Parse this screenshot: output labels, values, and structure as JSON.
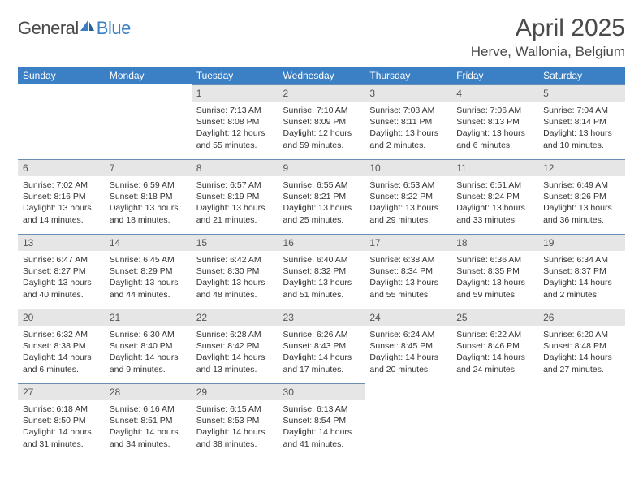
{
  "brand": {
    "part1": "General",
    "part2": "Blue"
  },
  "header": {
    "title": "April 2025",
    "location": "Herve, Wallonia, Belgium"
  },
  "colors": {
    "header_bg": "#3b7fc4",
    "header_fg": "#ffffff",
    "daynum_bg": "#e6e6e6",
    "daynum_border": "#6a8fb5",
    "text": "#333333",
    "muted": "#555555"
  },
  "weekdays": [
    "Sunday",
    "Monday",
    "Tuesday",
    "Wednesday",
    "Thursday",
    "Friday",
    "Saturday"
  ],
  "weeks": [
    [
      null,
      null,
      {
        "n": "1",
        "sr": "7:13 AM",
        "ss": "8:08 PM",
        "dl": "12 hours and 55 minutes."
      },
      {
        "n": "2",
        "sr": "7:10 AM",
        "ss": "8:09 PM",
        "dl": "12 hours and 59 minutes."
      },
      {
        "n": "3",
        "sr": "7:08 AM",
        "ss": "8:11 PM",
        "dl": "13 hours and 2 minutes."
      },
      {
        "n": "4",
        "sr": "7:06 AM",
        "ss": "8:13 PM",
        "dl": "13 hours and 6 minutes."
      },
      {
        "n": "5",
        "sr": "7:04 AM",
        "ss": "8:14 PM",
        "dl": "13 hours and 10 minutes."
      }
    ],
    [
      {
        "n": "6",
        "sr": "7:02 AM",
        "ss": "8:16 PM",
        "dl": "13 hours and 14 minutes."
      },
      {
        "n": "7",
        "sr": "6:59 AM",
        "ss": "8:18 PM",
        "dl": "13 hours and 18 minutes."
      },
      {
        "n": "8",
        "sr": "6:57 AM",
        "ss": "8:19 PM",
        "dl": "13 hours and 21 minutes."
      },
      {
        "n": "9",
        "sr": "6:55 AM",
        "ss": "8:21 PM",
        "dl": "13 hours and 25 minutes."
      },
      {
        "n": "10",
        "sr": "6:53 AM",
        "ss": "8:22 PM",
        "dl": "13 hours and 29 minutes."
      },
      {
        "n": "11",
        "sr": "6:51 AM",
        "ss": "8:24 PM",
        "dl": "13 hours and 33 minutes."
      },
      {
        "n": "12",
        "sr": "6:49 AM",
        "ss": "8:26 PM",
        "dl": "13 hours and 36 minutes."
      }
    ],
    [
      {
        "n": "13",
        "sr": "6:47 AM",
        "ss": "8:27 PM",
        "dl": "13 hours and 40 minutes."
      },
      {
        "n": "14",
        "sr": "6:45 AM",
        "ss": "8:29 PM",
        "dl": "13 hours and 44 minutes."
      },
      {
        "n": "15",
        "sr": "6:42 AM",
        "ss": "8:30 PM",
        "dl": "13 hours and 48 minutes."
      },
      {
        "n": "16",
        "sr": "6:40 AM",
        "ss": "8:32 PM",
        "dl": "13 hours and 51 minutes."
      },
      {
        "n": "17",
        "sr": "6:38 AM",
        "ss": "8:34 PM",
        "dl": "13 hours and 55 minutes."
      },
      {
        "n": "18",
        "sr": "6:36 AM",
        "ss": "8:35 PM",
        "dl": "13 hours and 59 minutes."
      },
      {
        "n": "19",
        "sr": "6:34 AM",
        "ss": "8:37 PM",
        "dl": "14 hours and 2 minutes."
      }
    ],
    [
      {
        "n": "20",
        "sr": "6:32 AM",
        "ss": "8:38 PM",
        "dl": "14 hours and 6 minutes."
      },
      {
        "n": "21",
        "sr": "6:30 AM",
        "ss": "8:40 PM",
        "dl": "14 hours and 9 minutes."
      },
      {
        "n": "22",
        "sr": "6:28 AM",
        "ss": "8:42 PM",
        "dl": "14 hours and 13 minutes."
      },
      {
        "n": "23",
        "sr": "6:26 AM",
        "ss": "8:43 PM",
        "dl": "14 hours and 17 minutes."
      },
      {
        "n": "24",
        "sr": "6:24 AM",
        "ss": "8:45 PM",
        "dl": "14 hours and 20 minutes."
      },
      {
        "n": "25",
        "sr": "6:22 AM",
        "ss": "8:46 PM",
        "dl": "14 hours and 24 minutes."
      },
      {
        "n": "26",
        "sr": "6:20 AM",
        "ss": "8:48 PM",
        "dl": "14 hours and 27 minutes."
      }
    ],
    [
      {
        "n": "27",
        "sr": "6:18 AM",
        "ss": "8:50 PM",
        "dl": "14 hours and 31 minutes."
      },
      {
        "n": "28",
        "sr": "6:16 AM",
        "ss": "8:51 PM",
        "dl": "14 hours and 34 minutes."
      },
      {
        "n": "29",
        "sr": "6:15 AM",
        "ss": "8:53 PM",
        "dl": "14 hours and 38 minutes."
      },
      {
        "n": "30",
        "sr": "6:13 AM",
        "ss": "8:54 PM",
        "dl": "14 hours and 41 minutes."
      },
      null,
      null,
      null
    ]
  ],
  "labels": {
    "sunrise_prefix": "Sunrise: ",
    "sunset_prefix": "Sunset: ",
    "daylight_prefix": "Daylight: "
  }
}
